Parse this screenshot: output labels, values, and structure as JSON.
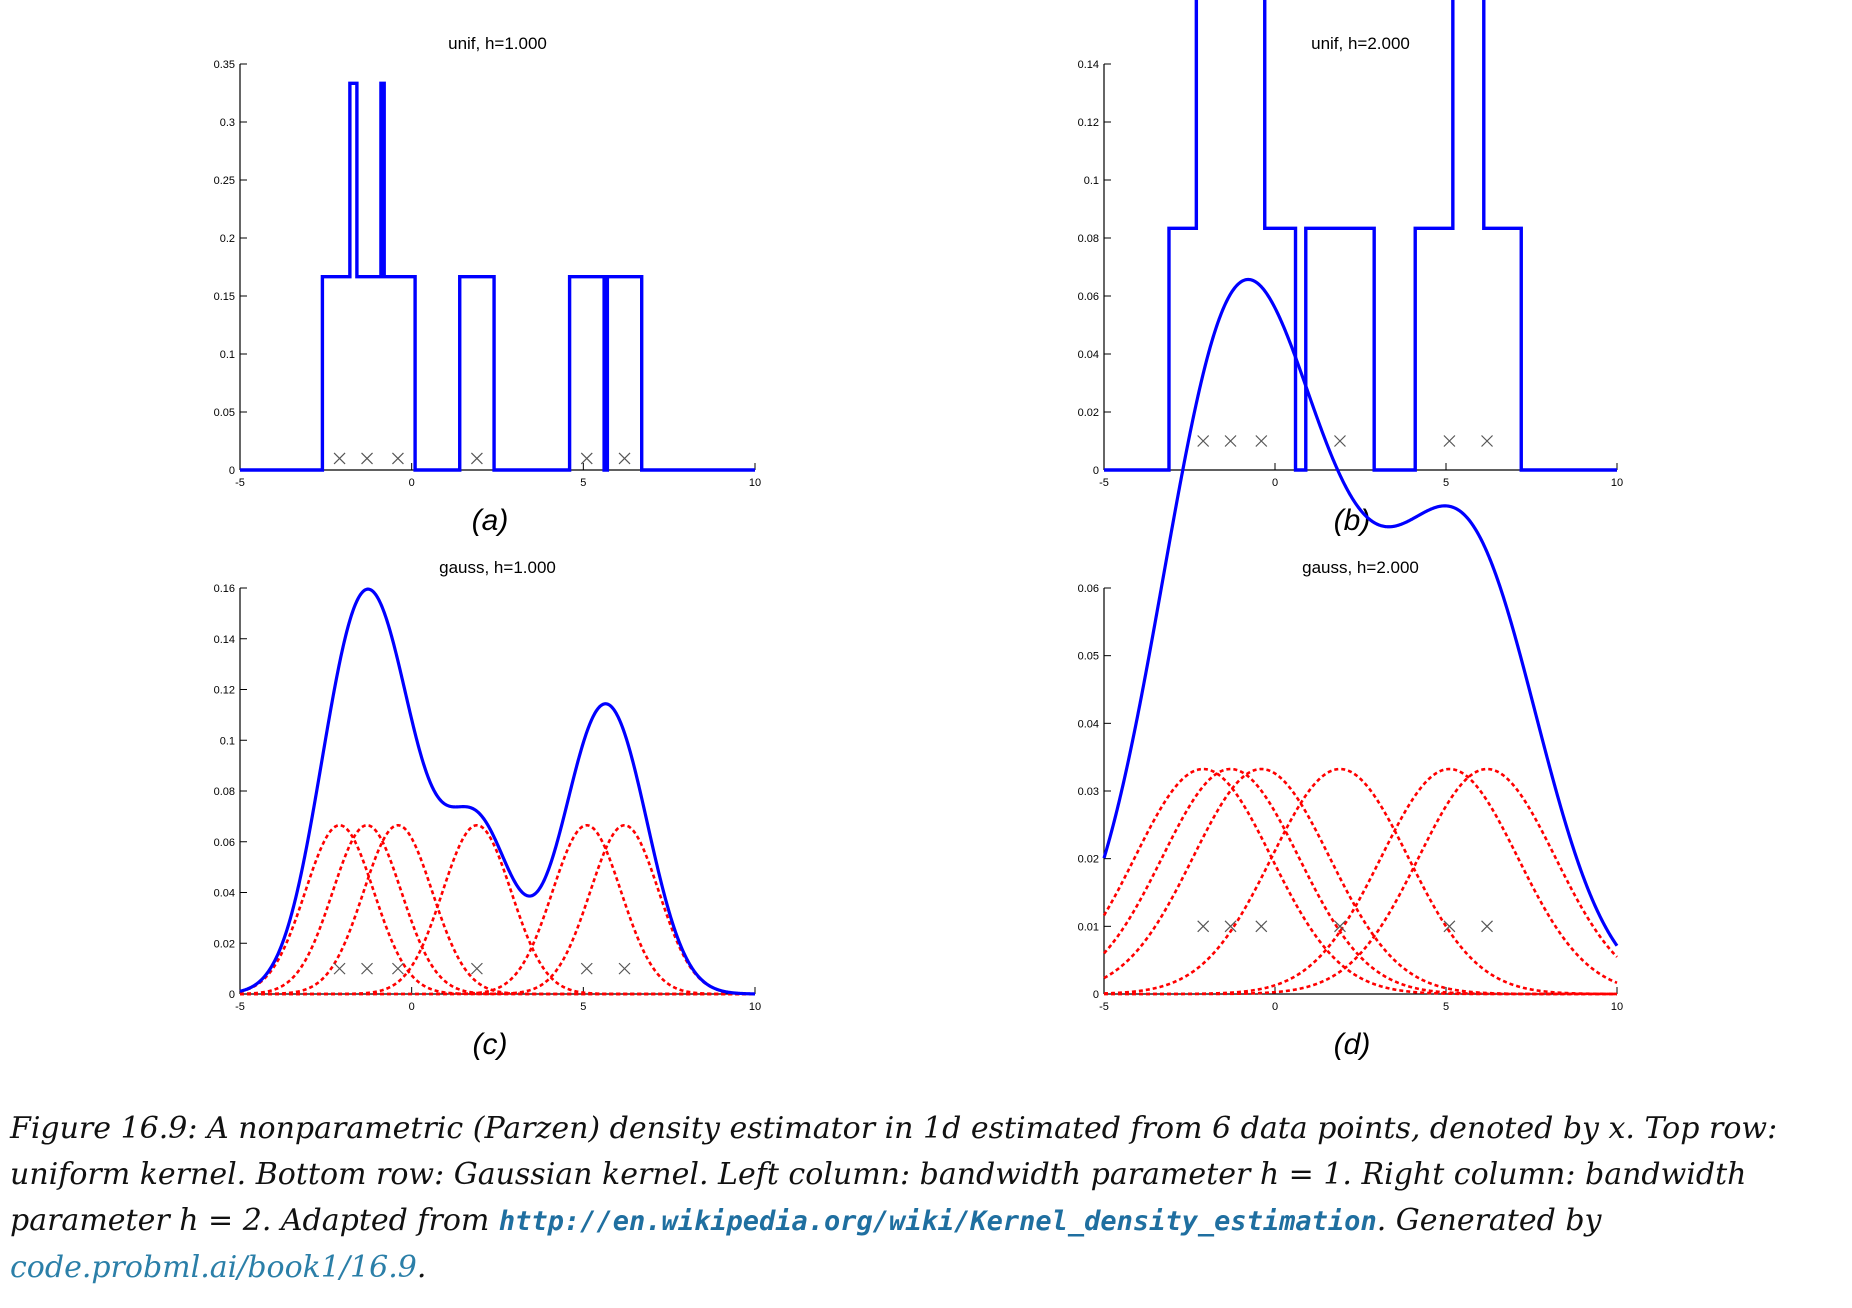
{
  "chart_data": [
    {
      "type": "line",
      "panel": "(a)",
      "title": "unif, h=1.000",
      "xlim": [
        -5,
        10
      ],
      "ylim": [
        0,
        0.35
      ],
      "xticks": [
        -5,
        0,
        5,
        10
      ],
      "yticks": [
        0,
        0.05,
        0.1,
        0.15,
        0.2,
        0.25,
        0.3,
        0.35
      ],
      "ytick_labels": [
        "0",
        "0.05",
        "0.1",
        "0.15",
        "0.2",
        "0.25",
        "0.3",
        "0.35"
      ],
      "xtick_labels": [
        "-5",
        "0",
        "5",
        "10"
      ],
      "kernel": "uniform",
      "h": 1,
      "data_points": [
        -2.1,
        -1.3,
        -0.4,
        1.9,
        5.1,
        6.2
      ],
      "marker_y": 0.01,
      "series": [
        {
          "color": "#0000ff",
          "style": "solid-step"
        }
      ]
    },
    {
      "type": "line",
      "panel": "(b)",
      "title": "unif, h=2.000",
      "xlim": [
        -5,
        10
      ],
      "ylim": [
        0,
        0.14
      ],
      "xticks": [
        -5,
        0,
        5,
        10
      ],
      "yticks": [
        0,
        0.02,
        0.04,
        0.06,
        0.08,
        0.1,
        0.12,
        0.14
      ],
      "ytick_labels": [
        "0",
        "0.02",
        "0.04",
        "0.06",
        "0.08",
        "0.1",
        "0.12",
        "0.14"
      ],
      "xtick_labels": [
        "-5",
        "0",
        "5",
        "10"
      ],
      "kernel": "uniform",
      "h": 2,
      "data_points": [
        -2.1,
        -1.3,
        -0.4,
        1.9,
        5.1,
        6.2
      ],
      "marker_y": 0.01,
      "series": [
        {
          "color": "#0000ff",
          "style": "solid-step"
        }
      ]
    },
    {
      "type": "line",
      "panel": "(c)",
      "title": "gauss, h=1.000",
      "xlim": [
        -5,
        10
      ],
      "ylim": [
        0,
        0.16
      ],
      "xticks": [
        -5,
        0,
        5,
        10
      ],
      "yticks": [
        0,
        0.02,
        0.04,
        0.06,
        0.08,
        0.1,
        0.12,
        0.14,
        0.16
      ],
      "ytick_labels": [
        "0",
        "0.02",
        "0.04",
        "0.06",
        "0.08",
        "0.1",
        "0.12",
        "0.14",
        "0.16"
      ],
      "xtick_labels": [
        "-5",
        "0",
        "5",
        "10"
      ],
      "kernel": "gaussian",
      "h": 1,
      "data_points": [
        -2.1,
        -1.3,
        -0.4,
        1.9,
        5.1,
        6.2
      ],
      "marker_y": 0.01,
      "series": [
        {
          "color": "#0000ff",
          "style": "solid"
        },
        {
          "color": "#ff0000",
          "style": "dotted"
        }
      ]
    },
    {
      "type": "line",
      "panel": "(d)",
      "title": "gauss, h=2.000",
      "xlim": [
        -5,
        10
      ],
      "ylim": [
        0,
        0.06
      ],
      "xticks": [
        -5,
        0,
        5,
        10
      ],
      "yticks": [
        0,
        0.01,
        0.02,
        0.03,
        0.04,
        0.05,
        0.06
      ],
      "ytick_labels": [
        "0",
        "0.01",
        "0.02",
        "0.03",
        "0.04",
        "0.05",
        "0.06"
      ],
      "xtick_labels": [
        "-5",
        "0",
        "5",
        "10"
      ],
      "kernel": "gaussian",
      "h": 2,
      "data_points": [
        -2.1,
        -1.3,
        -0.4,
        1.9,
        5.1,
        6.2
      ],
      "marker_y": 0.01,
      "series": [
        {
          "color": "#0000ff",
          "style": "solid"
        },
        {
          "color": "#ff0000",
          "style": "dotted"
        }
      ]
    }
  ],
  "caption": {
    "part1": "Figure 16.9: A nonparametric (Parzen) density estimator in 1d estimated from 6 data points, denoted by x. Top row: uniform kernel. Bottom row: Gaussian kernel. Left column: bandwidth parameter h = 1. Right column: bandwidth parameter h = 2. Adapted from ",
    "url": "http://en.wikipedia.org/wiki/Kernel_density_estimation",
    "part2": ". Generated by ",
    "link": "code.probml.ai/book1/16.9",
    "part3": "."
  }
}
